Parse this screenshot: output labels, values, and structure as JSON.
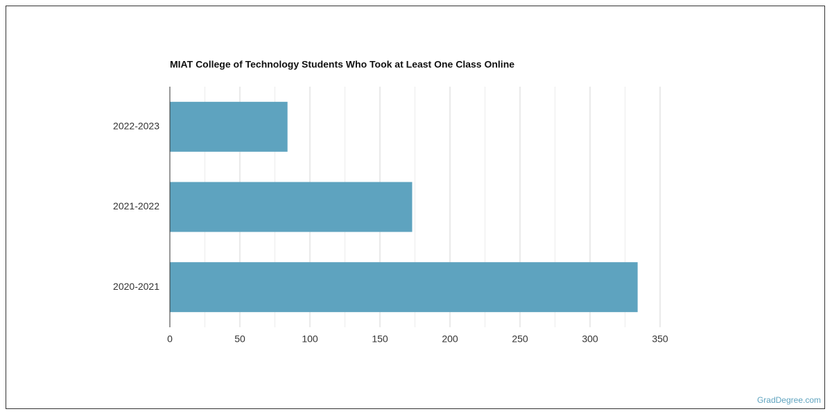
{
  "chart_data": {
    "type": "bar",
    "orientation": "horizontal",
    "title": "MIAT College of Technology Students Who Took at Least One Class Online",
    "categories": [
      "2022-2023",
      "2021-2022",
      "2020-2021"
    ],
    "values": [
      84,
      173,
      334
    ],
    "color": "#5ea3bf",
    "xlim": [
      0,
      350
    ],
    "xticks": [
      0,
      50,
      100,
      150,
      200,
      250,
      300,
      350
    ],
    "xticks_minor": [
      25,
      75,
      125,
      175,
      225,
      275,
      325
    ],
    "grid": true,
    "watermark": "GradDegree.com"
  }
}
